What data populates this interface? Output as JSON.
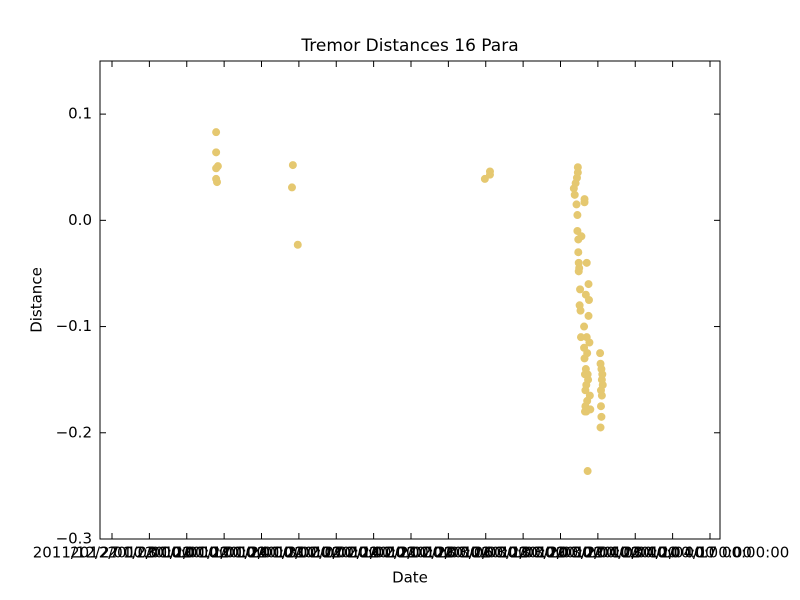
{
  "chart_data": {
    "type": "scatter",
    "title": "Tremor Distances 16 Para",
    "xlabel": "Date",
    "ylabel": "Distance",
    "color": "#e5c870",
    "xlim": [
      "2011-12-24 18:00",
      "2012-04-18 21:00"
    ],
    "ylim": [
      -0.3,
      0.15
    ],
    "xticks": [
      {
        "value": "2011-12-27 00:00",
        "label": "2011/12/27 00:00:00"
      },
      {
        "value": "2012-01-03 00:00",
        "label": "2012/01/03 00:00:00"
      },
      {
        "value": "2012-01-10 00:00",
        "label": "2012/01/10 00:00:00"
      },
      {
        "value": "2012-01-17 00:00",
        "label": "2012/01/17 00:00:00"
      },
      {
        "value": "2012-01-24 00:00",
        "label": "2012/01/24 00:00:00"
      },
      {
        "value": "2012-01-31 00:00",
        "label": "2012/01/31 00:00:00"
      },
      {
        "value": "2012-02-07 00:00",
        "label": "2012/02/07 00:00:00"
      },
      {
        "value": "2012-02-14 00:00",
        "label": "2012/02/14 00:00:00"
      },
      {
        "value": "2012-02-21 00:00",
        "label": "2012/02/21 00:00:00"
      },
      {
        "value": "2012-02-28 00:00",
        "label": "2012/02/28 00:00:00"
      },
      {
        "value": "2012-03-06 00:00",
        "label": "2012/03/06 00:00:00"
      },
      {
        "value": "2012-03-13 00:00",
        "label": "2012/03/13 00:00:00"
      },
      {
        "value": "2012-03-20 00:00",
        "label": "2012/03/20 00:00:00"
      },
      {
        "value": "2012-03-27 00:00",
        "label": "2012/03/27 00:00:00"
      },
      {
        "value": "2012-04-03 00:00",
        "label": "2012/04/03 00:00:00"
      },
      {
        "value": "2012-04-10 00:00",
        "label": "2012/04/10 00:00:00"
      },
      {
        "value": "2012-04-17 00:00",
        "label": "2012/04/17 00:00:00"
      }
    ],
    "yticks": [
      {
        "value": -0.3,
        "label": "−0.3"
      },
      {
        "value": -0.2,
        "label": "−0.2"
      },
      {
        "value": -0.1,
        "label": "−0.1"
      },
      {
        "value": 0,
        "label": "0.0"
      },
      {
        "value": 0.1,
        "label": "0.1"
      }
    ],
    "x": [
      "2012-01-15 12:00",
      "2012-01-15 12:00",
      "2012-01-15 20:00",
      "2012-01-15 12:00",
      "2012-01-15 12:00",
      "2012-01-15 16:00",
      "2012-01-29 21:00",
      "2012-01-29 17:00",
      "2012-01-30 19:00",
      "2012-03-05 20:00",
      "2012-03-06 19:00",
      "2012-03-06 19:00",
      "2012-03-22 12:00",
      "2012-03-22 16:00",
      "2012-03-22 20:00",
      "2012-03-23 06:00",
      "2012-03-23 06:00",
      "2012-03-23 02:00",
      "2012-03-23 00:00",
      "2012-03-23 04:00",
      "2012-03-23 04:00",
      "2012-03-23 08:00",
      "2012-03-23 08:00",
      "2012-03-23 10:00",
      "2012-03-23 10:00",
      "2012-03-23 12:00",
      "2012-03-23 14:00",
      "2012-03-23 16:00",
      "2012-03-23 20:00",
      "2012-03-23 18:00",
      "2012-03-23 22:00",
      "2012-03-24 10:00",
      "2012-03-24 10:00",
      "2012-03-24 12:00",
      "2012-03-24 14:00",
      "2012-03-24 14:00",
      "2012-03-24 16:00",
      "2012-03-24 16:00",
      "2012-03-24 18:00",
      "2012-03-24 18:00",
      "2012-03-24 20:00",
      "2012-03-24 20:00",
      "2012-03-24 22:00",
      "2012-03-24 22:00",
      "2012-03-25 00:00",
      "2012-03-25 00:00",
      "2012-03-25 02:00",
      "2012-03-25 02:00",
      "2012-03-25 04:00",
      "2012-03-25 04:00",
      "2012-03-25 06:00",
      "2012-03-25 06:00",
      "2012-03-25 08:00",
      "2012-03-25 10:00",
      "2012-03-25 12:00",
      "2012-03-25 14:00",
      "2012-03-24 12:00",
      "2012-03-24 12:00",
      "2012-03-27 10:00",
      "2012-03-27 12:00",
      "2012-03-27 12:00",
      "2012-03-27 14:00",
      "2012-03-27 14:00",
      "2012-03-27 16:00",
      "2012-03-27 16:00",
      "2012-03-27 18:00",
      "2012-03-27 18:00",
      "2012-03-27 20:00",
      "2012-03-27 22:00"
    ],
    "values": [
      0.083,
      0.064,
      0.051,
      0.049,
      0.039,
      0.036,
      0.052,
      0.031,
      -0.023,
      0.039,
      0.046,
      0.043,
      0.03,
      0.024,
      0.035,
      0.05,
      0.045,
      0.04,
      0.015,
      0.005,
      -0.01,
      -0.018,
      -0.03,
      -0.04,
      -0.048,
      -0.045,
      -0.08,
      -0.065,
      -0.11,
      -0.085,
      -0.015,
      -0.1,
      -0.12,
      -0.13,
      -0.145,
      -0.18,
      -0.175,
      -0.16,
      -0.07,
      -0.14,
      -0.155,
      -0.18,
      -0.11,
      -0.04,
      -0.125,
      -0.17,
      -0.236,
      -0.145,
      -0.178,
      -0.15,
      -0.06,
      -0.09,
      -0.075,
      -0.115,
      -0.165,
      -0.178,
      0.02,
      0.017,
      -0.125,
      -0.135,
      -0.195,
      -0.16,
      -0.175,
      -0.14,
      -0.185,
      -0.15,
      -0.165,
      -0.145,
      -0.155
    ]
  }
}
